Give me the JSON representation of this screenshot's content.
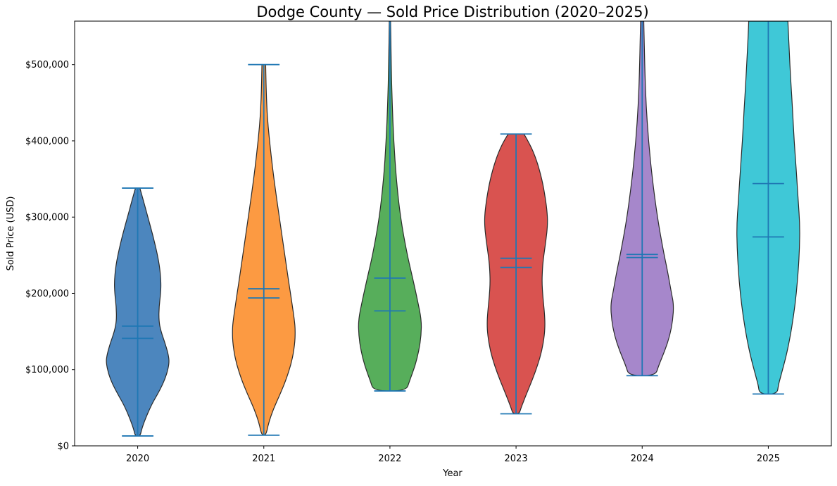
{
  "chart_data": {
    "type": "violin",
    "title": "Dodge County — Sold Price Distribution (2020–2025)",
    "xlabel": "Year",
    "ylabel": "Sold Price (USD)",
    "categories": [
      "2020",
      "2021",
      "2022",
      "2023",
      "2024",
      "2025"
    ],
    "ylim": [
      0,
      557000
    ],
    "grid": false,
    "legend": "none",
    "yticks": [
      {
        "value": 0,
        "label": "$0"
      },
      {
        "value": 100000,
        "label": "$100,000"
      },
      {
        "value": 200000,
        "label": "$200,000"
      },
      {
        "value": 300000,
        "label": "$300,000"
      },
      {
        "value": 400000,
        "label": "$400,000"
      },
      {
        "value": 500000,
        "label": "$500,000"
      }
    ],
    "line_color": "#1f77b4",
    "edge_color": "#2a2a2a",
    "series": [
      {
        "year": "2020",
        "color": "#4C86BE",
        "min": 13000,
        "max": 338000,
        "max_clipped": false,
        "mean": 157000,
        "median": 141000,
        "profile": [
          [
            338000,
            0.07
          ],
          [
            322000,
            0.18
          ],
          [
            299000,
            0.33
          ],
          [
            275000,
            0.49
          ],
          [
            252000,
            0.62
          ],
          [
            234000,
            0.7
          ],
          [
            215000,
            0.74
          ],
          [
            201000,
            0.73
          ],
          [
            183000,
            0.68
          ],
          [
            165000,
            0.67
          ],
          [
            151000,
            0.73
          ],
          [
            132000,
            0.89
          ],
          [
            118000,
            0.98
          ],
          [
            109000,
            1.0
          ],
          [
            95000,
            0.93
          ],
          [
            81000,
            0.8
          ],
          [
            67000,
            0.62
          ],
          [
            54000,
            0.44
          ],
          [
            35000,
            0.24
          ],
          [
            21000,
            0.12
          ],
          [
            13000,
            0.08
          ]
        ]
      },
      {
        "year": "2021",
        "color": "#FC9A42",
        "min": 14000,
        "max": 500000,
        "max_clipped": false,
        "mean": 206000,
        "median": 194000,
        "profile": [
          [
            500000,
            0.06
          ],
          [
            474000,
            0.07
          ],
          [
            437000,
            0.1
          ],
          [
            400000,
            0.18
          ],
          [
            363000,
            0.28
          ],
          [
            326000,
            0.4
          ],
          [
            289000,
            0.53
          ],
          [
            252000,
            0.66
          ],
          [
            215000,
            0.79
          ],
          [
            188000,
            0.89
          ],
          [
            165000,
            0.97
          ],
          [
            151000,
            1.0
          ],
          [
            132000,
            0.98
          ],
          [
            109000,
            0.88
          ],
          [
            86000,
            0.7
          ],
          [
            67000,
            0.51
          ],
          [
            49000,
            0.31
          ],
          [
            30000,
            0.15
          ],
          [
            14000,
            0.07
          ]
        ]
      },
      {
        "year": "2022",
        "color": "#57AE5B",
        "min": 72000,
        "max": null,
        "max_clipped": true,
        "mean": 220000,
        "median": 177000,
        "profile": [
          [
            557000,
            0.02
          ],
          [
            500000,
            0.04
          ],
          [
            450000,
            0.07
          ],
          [
            400000,
            0.12
          ],
          [
            350000,
            0.2
          ],
          [
            300000,
            0.33
          ],
          [
            250000,
            0.55
          ],
          [
            220000,
            0.72
          ],
          [
            190000,
            0.88
          ],
          [
            165000,
            1.0
          ],
          [
            145000,
            0.99
          ],
          [
            125000,
            0.92
          ],
          [
            105000,
            0.8
          ],
          [
            85000,
            0.62
          ],
          [
            72000,
            0.52
          ]
        ]
      },
      {
        "year": "2023",
        "color": "#D95350",
        "min": 42000,
        "max": 409000,
        "max_clipped": false,
        "mean": 246000,
        "median": 234000,
        "profile": [
          [
            409000,
            0.25
          ],
          [
            395000,
            0.45
          ],
          [
            375000,
            0.65
          ],
          [
            350000,
            0.82
          ],
          [
            325000,
            0.93
          ],
          [
            305000,
            0.99
          ],
          [
            290000,
            1.0
          ],
          [
            270000,
            0.95
          ],
          [
            250000,
            0.88
          ],
          [
            235000,
            0.84
          ],
          [
            215000,
            0.82
          ],
          [
            195000,
            0.85
          ],
          [
            175000,
            0.9
          ],
          [
            160000,
            0.92
          ],
          [
            145000,
            0.9
          ],
          [
            125000,
            0.82
          ],
          [
            105000,
            0.68
          ],
          [
            85000,
            0.5
          ],
          [
            65000,
            0.3
          ],
          [
            50000,
            0.16
          ],
          [
            42000,
            0.1
          ]
        ]
      },
      {
        "year": "2024",
        "color": "#A687CB",
        "min": 92000,
        "max": null,
        "max_clipped": true,
        "mean": 251000,
        "median": 247000,
        "profile": [
          [
            557000,
            0.05
          ],
          [
            500000,
            0.08
          ],
          [
            450000,
            0.12
          ],
          [
            400000,
            0.2
          ],
          [
            350000,
            0.32
          ],
          [
            300000,
            0.48
          ],
          [
            260000,
            0.65
          ],
          [
            230000,
            0.8
          ],
          [
            200000,
            0.93
          ],
          [
            185000,
            1.0
          ],
          [
            165000,
            0.97
          ],
          [
            145000,
            0.88
          ],
          [
            125000,
            0.72
          ],
          [
            105000,
            0.52
          ],
          [
            92000,
            0.42
          ]
        ]
      },
      {
        "year": "2025",
        "color": "#3FC8D7",
        "min": 68000,
        "max": null,
        "max_clipped": true,
        "mean": 344000,
        "median": 274000,
        "profile": [
          [
            557000,
            0.62
          ],
          [
            520000,
            0.66
          ],
          [
            480000,
            0.71
          ],
          [
            440000,
            0.77
          ],
          [
            400000,
            0.82
          ],
          [
            360000,
            0.89
          ],
          [
            320000,
            0.95
          ],
          [
            290000,
            1.0
          ],
          [
            260000,
            0.99
          ],
          [
            230000,
            0.95
          ],
          [
            200000,
            0.89
          ],
          [
            170000,
            0.8
          ],
          [
            140000,
            0.68
          ],
          [
            115000,
            0.55
          ],
          [
            95000,
            0.42
          ],
          [
            80000,
            0.32
          ],
          [
            68000,
            0.28
          ]
        ]
      }
    ]
  }
}
